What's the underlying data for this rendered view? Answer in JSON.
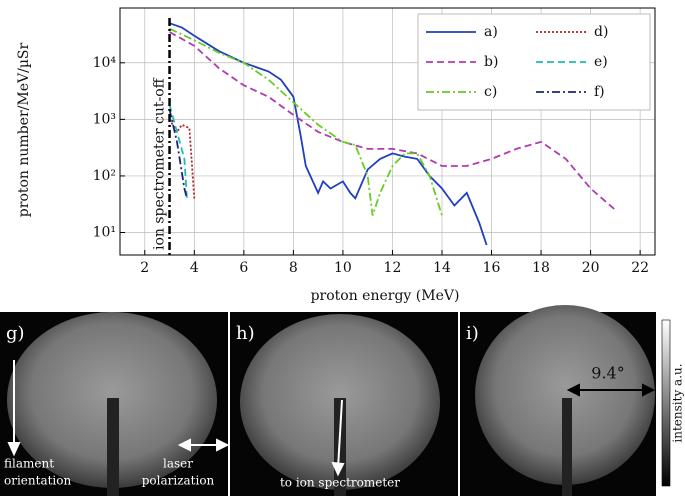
{
  "chart_data": {
    "type": "line",
    "xlabel": "proton energy (MeV)",
    "ylabel": "proton number/MeV/µSr",
    "xlim": [
      1,
      22.6
    ],
    "ylim": [
      4,
      93000
    ],
    "ylog": true,
    "xticks": [
      2,
      4,
      6,
      8,
      10,
      12,
      14,
      16,
      18,
      20,
      22
    ],
    "yticks": [
      {
        "value": 10,
        "label": "10¹"
      },
      {
        "value": 100,
        "label": "10²"
      },
      {
        "value": 1000,
        "label": "10³"
      },
      {
        "value": 10000,
        "label": "10⁴"
      }
    ],
    "grid": true,
    "legend": "upper right",
    "cutoff": {
      "x": 3,
      "label": "ion spectrometer cut-off"
    },
    "series": [
      {
        "name": "a)",
        "color": "#1f3fbf",
        "style": "solid",
        "x": [
          3,
          3.5,
          4,
          5,
          6,
          7,
          7.5,
          8,
          8.3,
          8.5,
          9,
          9.2,
          9.5,
          10,
          10.3,
          10.5,
          11,
          11.5,
          12,
          12.5,
          13,
          13.5,
          14,
          14.5,
          15,
          15.5,
          15.8
        ],
        "values": [
          50000,
          42000,
          30000,
          16000,
          10000,
          7000,
          5000,
          2500,
          500,
          150,
          50,
          80,
          60,
          80,
          50,
          40,
          130,
          200,
          250,
          220,
          200,
          100,
          60,
          30,
          50,
          15,
          6
        ]
      },
      {
        "name": "b)",
        "color": "#b03bb0",
        "style": "dashed",
        "x": [
          3,
          4,
          5,
          6,
          7,
          8,
          9,
          10,
          11,
          12,
          13,
          14,
          15,
          16,
          17,
          18,
          19,
          20,
          21
        ],
        "values": [
          35000,
          20000,
          8000,
          4000,
          2500,
          1200,
          600,
          400,
          300,
          300,
          250,
          150,
          150,
          200,
          300,
          400,
          200,
          60,
          25
        ]
      },
      {
        "name": "c)",
        "color": "#66cc22",
        "style": "dashdot",
        "x": [
          3,
          4,
          5,
          6,
          7,
          8,
          9,
          10,
          10.5,
          11,
          11.2,
          11.5,
          12,
          12.5,
          13,
          13.5,
          14
        ],
        "values": [
          40000,
          25000,
          15000,
          10000,
          5000,
          2000,
          800,
          400,
          350,
          100,
          20,
          50,
          150,
          250,
          250,
          100,
          20
        ]
      },
      {
        "name": "d)",
        "color": "#b22222",
        "style": "dotted",
        "x": [
          3,
          3.3,
          3.5,
          3.8,
          4
        ],
        "values": [
          1000,
          600,
          800,
          700,
          40
        ]
      },
      {
        "name": "e)",
        "color": "#22bbaa",
        "style": "dashed",
        "x": [
          3,
          3.3,
          3.6,
          3.7
        ],
        "values": [
          1800,
          600,
          200,
          40
        ]
      },
      {
        "name": "f)",
        "color": "#1a237e",
        "style": "dashdot",
        "x": [
          3,
          3.3,
          3.6,
          3.7
        ],
        "values": [
          1500,
          400,
          60,
          40
        ]
      }
    ]
  },
  "panels": {
    "labels": [
      "g)",
      "h)",
      "i)"
    ],
    "filament": [
      "filament",
      "orientation"
    ],
    "laser": [
      "laser",
      "polarization"
    ],
    "spectrometer": "to ion spectrometer",
    "angle": "9.4°",
    "colorbar": "intensity a.u."
  }
}
